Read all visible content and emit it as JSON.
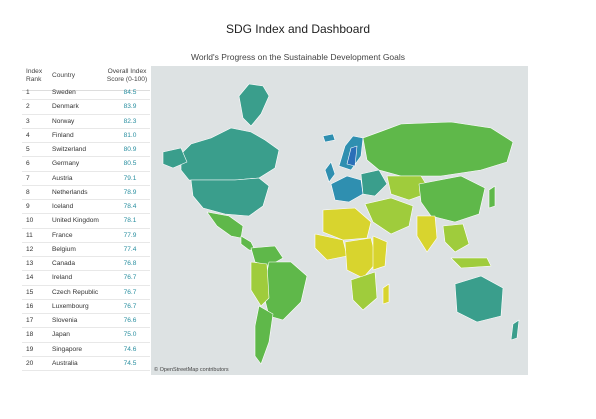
{
  "header": {
    "title": "SDG Index and Dashboard",
    "subtitle": "World's Progress on the Sustainable Development Goals"
  },
  "ranking": {
    "columns": {
      "rank_line1": "Index",
      "rank_line2": "Rank",
      "country": "Country",
      "score_line1": "Overall Index",
      "score_line2": "Score (0-100)"
    },
    "rows": [
      {
        "rank": "1",
        "country": "Sweden",
        "score": "84.5"
      },
      {
        "rank": "2",
        "country": "Denmark",
        "score": "83.9"
      },
      {
        "rank": "3",
        "country": "Norway",
        "score": "82.3"
      },
      {
        "rank": "4",
        "country": "Finland",
        "score": "81.0"
      },
      {
        "rank": "5",
        "country": "Switzerland",
        "score": "80.9"
      },
      {
        "rank": "6",
        "country": "Germany",
        "score": "80.5"
      },
      {
        "rank": "7",
        "country": "Austria",
        "score": "79.1"
      },
      {
        "rank": "8",
        "country": "Netherlands",
        "score": "78.9"
      },
      {
        "rank": "9",
        "country": "Iceland",
        "score": "78.4"
      },
      {
        "rank": "10",
        "country": "United Kingdom",
        "score": "78.1"
      },
      {
        "rank": "11",
        "country": "France",
        "score": "77.9"
      },
      {
        "rank": "12",
        "country": "Belgium",
        "score": "77.4"
      },
      {
        "rank": "13",
        "country": "Canada",
        "score": "76.8"
      },
      {
        "rank": "14",
        "country": "Ireland",
        "score": "76.7"
      },
      {
        "rank": "15",
        "country": "Czech Republic",
        "score": "76.7"
      },
      {
        "rank": "16",
        "country": "Luxembourg",
        "score": "76.7"
      },
      {
        "rank": "17",
        "country": "Slovenia",
        "score": "76.6"
      },
      {
        "rank": "18",
        "country": "Japan",
        "score": "75.0"
      },
      {
        "rank": "19",
        "country": "Singapore",
        "score": "74.6"
      },
      {
        "rank": "20",
        "country": "Australia",
        "score": "74.5"
      }
    ]
  },
  "map": {
    "attribution": "© OpenStreetMap contributors",
    "colors": {
      "ocean": "#dde2e3",
      "high": "#2f8fb0",
      "upper": "#3a9e8c",
      "mid": "#5fb84a",
      "lower": "#9fcc3c",
      "low": "#d8d42e",
      "sweden": "#2b6fb8"
    }
  }
}
